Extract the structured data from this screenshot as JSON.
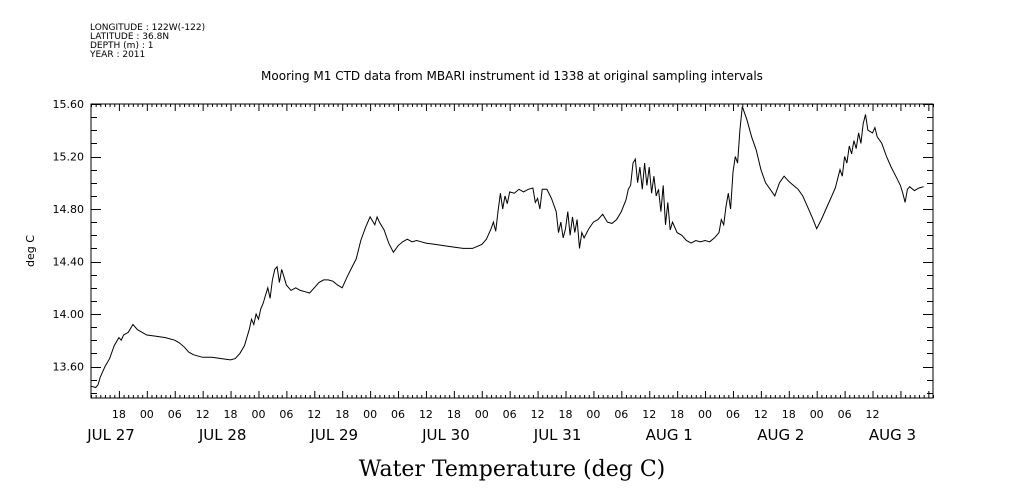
{
  "metadata_lines": [
    "LONGITUDE : 122W(-122)",
    "LATITUDE : 36.8N",
    "DEPTH (m) : 1",
    "YEAR : 2011"
  ],
  "chart_data": {
    "type": "line",
    "title": "Mooring M1 CTD data from MBARI instrument id 1338 at original sampling intervals",
    "xlabel": "Water Temperature (deg C)",
    "ylabel": "deg C",
    "ylim": [
      13.36,
      15.6
    ],
    "yticks": [
      "13.60",
      "14.00",
      "14.40",
      "14.80",
      "15.20",
      "15.60"
    ],
    "xlim_hours": [
      0,
      169
    ],
    "x_start": "2011-07-27 12:00",
    "hour_ticks": [
      "18",
      "00",
      "06",
      "12",
      "18",
      "00",
      "06",
      "12",
      "18",
      "00",
      "06",
      "12",
      "18",
      "00",
      "06",
      "12",
      "18",
      "00",
      "06",
      "12",
      "18",
      "00",
      "06",
      "12",
      "18",
      "00",
      "06",
      "12"
    ],
    "day_labels": [
      "JUL 27",
      "JUL 28",
      "JUL 29",
      "JUL 30",
      "JUL 31",
      "AUG  1",
      "AUG  2",
      "AUG  3"
    ],
    "grid": false,
    "series": [
      {
        "values": [
          [
            0,
            13.45
          ],
          [
            1,
            13.44
          ],
          [
            1.5,
            13.46
          ],
          [
            2,
            13.52
          ],
          [
            3,
            13.6
          ],
          [
            4,
            13.66
          ],
          [
            5,
            13.76
          ],
          [
            6,
            13.82
          ],
          [
            6.5,
            13.8
          ],
          [
            7,
            13.84
          ],
          [
            8,
            13.86
          ],
          [
            9,
            13.92
          ],
          [
            10,
            13.88
          ],
          [
            11,
            13.86
          ],
          [
            12,
            13.84
          ],
          [
            14,
            13.83
          ],
          [
            16,
            13.82
          ],
          [
            18,
            13.8
          ],
          [
            19,
            13.78
          ],
          [
            20,
            13.75
          ],
          [
            21,
            13.71
          ],
          [
            22,
            13.69
          ],
          [
            24,
            13.67
          ],
          [
            26,
            13.67
          ],
          [
            28,
            13.66
          ],
          [
            30,
            13.65
          ],
          [
            31,
            13.66
          ],
          [
            32,
            13.7
          ],
          [
            33,
            13.76
          ],
          [
            34,
            13.88
          ],
          [
            34.5,
            13.96
          ],
          [
            35,
            13.92
          ],
          [
            35.5,
            14.0
          ],
          [
            36,
            13.96
          ],
          [
            36.5,
            14.04
          ],
          [
            37,
            14.08
          ],
          [
            37.5,
            14.14
          ],
          [
            38,
            14.2
          ],
          [
            38.5,
            14.12
          ],
          [
            39,
            14.26
          ],
          [
            39.5,
            14.34
          ],
          [
            40,
            14.36
          ],
          [
            40.5,
            14.24
          ],
          [
            41,
            14.34
          ],
          [
            41.5,
            14.28
          ],
          [
            42,
            14.22
          ],
          [
            43,
            14.18
          ],
          [
            44,
            14.2
          ],
          [
            45,
            14.18
          ],
          [
            46,
            14.17
          ],
          [
            47,
            14.16
          ],
          [
            48,
            14.2
          ],
          [
            49,
            14.24
          ],
          [
            50,
            14.26
          ],
          [
            51,
            14.26
          ],
          [
            52,
            14.25
          ],
          [
            53,
            14.22
          ],
          [
            54,
            14.2
          ],
          [
            55,
            14.28
          ],
          [
            56,
            14.35
          ],
          [
            57,
            14.42
          ],
          [
            58,
            14.56
          ],
          [
            59,
            14.66
          ],
          [
            60,
            14.74
          ],
          [
            61,
            14.68
          ],
          [
            61.5,
            14.74
          ],
          [
            62,
            14.7
          ],
          [
            63,
            14.64
          ],
          [
            64,
            14.54
          ],
          [
            65,
            14.47
          ],
          [
            66,
            14.52
          ],
          [
            67,
            14.55
          ],
          [
            68,
            14.57
          ],
          [
            69,
            14.55
          ],
          [
            70,
            14.56
          ],
          [
            71,
            14.55
          ],
          [
            72,
            14.54
          ],
          [
            74,
            14.53
          ],
          [
            76,
            14.52
          ],
          [
            78,
            14.51
          ],
          [
            80,
            14.5
          ],
          [
            82,
            14.5
          ],
          [
            84,
            14.53
          ],
          [
            85,
            14.57
          ],
          [
            86,
            14.65
          ],
          [
            86.5,
            14.7
          ],
          [
            87,
            14.63
          ],
          [
            87.5,
            14.78
          ],
          [
            88,
            14.92
          ],
          [
            88.5,
            14.8
          ],
          [
            89,
            14.9
          ],
          [
            89.5,
            14.84
          ],
          [
            90,
            14.93
          ],
          [
            91,
            14.92
          ],
          [
            92,
            14.95
          ],
          [
            93,
            14.93
          ],
          [
            94,
            14.95
          ],
          [
            95,
            14.96
          ],
          [
            95.5,
            14.85
          ],
          [
            96,
            14.88
          ],
          [
            96.5,
            14.8
          ],
          [
            97,
            14.95
          ],
          [
            98,
            14.95
          ],
          [
            99,
            14.88
          ],
          [
            100,
            14.78
          ],
          [
            100.5,
            14.62
          ],
          [
            101,
            14.7
          ],
          [
            101.5,
            14.58
          ],
          [
            102,
            14.65
          ],
          [
            102.5,
            14.78
          ],
          [
            103,
            14.6
          ],
          [
            103.5,
            14.74
          ],
          [
            104,
            14.62
          ],
          [
            104.5,
            14.72
          ],
          [
            105,
            14.5
          ],
          [
            105.5,
            14.62
          ],
          [
            106,
            14.58
          ],
          [
            107,
            14.65
          ],
          [
            108,
            14.7
          ],
          [
            109,
            14.72
          ],
          [
            110,
            14.76
          ],
          [
            111,
            14.7
          ],
          [
            112,
            14.69
          ],
          [
            113,
            14.72
          ],
          [
            114,
            14.78
          ],
          [
            115,
            14.87
          ],
          [
            115.5,
            14.95
          ],
          [
            116,
            14.98
          ],
          [
            116.5,
            15.15
          ],
          [
            117,
            15.18
          ],
          [
            117.5,
            15.0
          ],
          [
            118,
            15.12
          ],
          [
            118.5,
            14.95
          ],
          [
            119,
            15.15
          ],
          [
            119.5,
            14.98
          ],
          [
            120,
            15.12
          ],
          [
            120.5,
            14.92
          ],
          [
            121,
            15.05
          ],
          [
            121.5,
            14.9
          ],
          [
            122,
            14.95
          ],
          [
            122.5,
            14.78
          ],
          [
            123,
            14.98
          ],
          [
            123.5,
            14.68
          ],
          [
            124,
            14.85
          ],
          [
            124.5,
            14.64
          ],
          [
            125,
            14.7
          ],
          [
            126,
            14.62
          ],
          [
            127,
            14.6
          ],
          [
            128,
            14.56
          ],
          [
            129,
            14.54
          ],
          [
            130,
            14.56
          ],
          [
            131,
            14.55
          ],
          [
            132,
            14.56
          ],
          [
            133,
            14.55
          ],
          [
            134,
            14.58
          ],
          [
            135,
            14.62
          ],
          [
            135.5,
            14.72
          ],
          [
            136,
            14.68
          ],
          [
            136.5,
            14.82
          ],
          [
            137,
            14.92
          ],
          [
            137.5,
            14.8
          ],
          [
            138,
            15.08
          ],
          [
            138.5,
            15.2
          ],
          [
            139,
            15.15
          ],
          [
            139.5,
            15.4
          ],
          [
            140,
            15.58
          ],
          [
            141,
            15.48
          ],
          [
            142,
            15.35
          ],
          [
            143,
            15.25
          ],
          [
            144,
            15.1
          ],
          [
            145,
            15.0
          ],
          [
            146,
            14.95
          ],
          [
            147,
            14.9
          ],
          [
            148,
            15.0
          ],
          [
            149,
            15.05
          ],
          [
            150,
            15.01
          ],
          [
            151,
            14.98
          ],
          [
            152,
            14.95
          ],
          [
            153,
            14.9
          ],
          [
            154,
            14.82
          ],
          [
            155,
            14.74
          ],
          [
            156,
            14.65
          ],
          [
            157,
            14.72
          ],
          [
            158,
            14.8
          ],
          [
            159,
            14.88
          ],
          [
            160,
            14.96
          ],
          [
            161,
            15.1
          ],
          [
            161.5,
            15.05
          ],
          [
            162,
            15.2
          ],
          [
            162.5,
            15.15
          ],
          [
            163,
            15.28
          ],
          [
            163.5,
            15.22
          ],
          [
            164,
            15.32
          ],
          [
            164.5,
            15.26
          ],
          [
            165,
            15.38
          ],
          [
            165.5,
            15.3
          ],
          [
            166,
            15.45
          ],
          [
            166.5,
            15.52
          ],
          [
            167,
            15.4
          ],
          [
            168,
            15.38
          ],
          [
            168.5,
            15.42
          ],
          [
            169,
            15.35
          ]
        ]
      }
    ],
    "series_tail": [
      [
        169,
        15.35
      ],
      [
        170,
        15.3
      ],
      [
        171,
        15.2
      ],
      [
        172,
        15.12
      ],
      [
        173,
        15.05
      ],
      [
        174,
        14.98
      ],
      [
        174.5,
        14.92
      ],
      [
        175,
        14.85
      ],
      [
        175.5,
        14.95
      ],
      [
        176,
        14.97
      ],
      [
        177,
        14.94
      ],
      [
        178,
        14.96
      ],
      [
        179,
        14.97
      ]
    ]
  }
}
